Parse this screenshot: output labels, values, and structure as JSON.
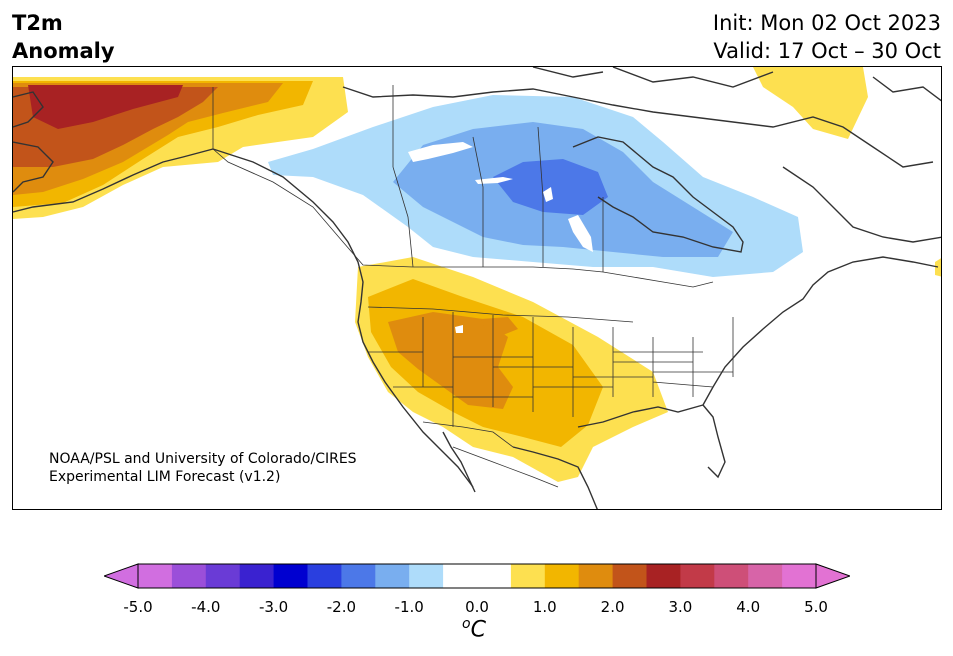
{
  "title": {
    "line1": "T2m",
    "line2": "Anomaly"
  },
  "init": {
    "line1": "Init: Mon 02 Oct 2023",
    "line2": "Valid: 17 Oct – 30 Oct"
  },
  "credit": {
    "line1": "NOAA/PSL and University of Colorado/CIRES",
    "line2": "Experimental LIM Forecast (v1.2)"
  },
  "colorbar": {
    "ticks": [
      "-5.0",
      "-4.0",
      "-3.0",
      "-2.0",
      "-1.0",
      "0.0",
      "1.0",
      "2.0",
      "3.0",
      "4.0",
      "5.0"
    ],
    "colors": [
      "#d16ee0",
      "#9b4fd9",
      "#6a3bd6",
      "#3a22d0",
      "#0000d0",
      "#2a3fdf",
      "#4c78e8",
      "#79aeef",
      "#aedcfa",
      "#ffffff",
      "#ffffff",
      "#fde050",
      "#f2b600",
      "#df8c0e",
      "#c2541a",
      "#a82223",
      "#c23a48",
      "#ce4f78",
      "#d764a8",
      "#e272d3"
    ],
    "under_color": "#d16ee0",
    "over_color": "#e272d3",
    "units_main": "C",
    "units_sup": "o"
  }
}
